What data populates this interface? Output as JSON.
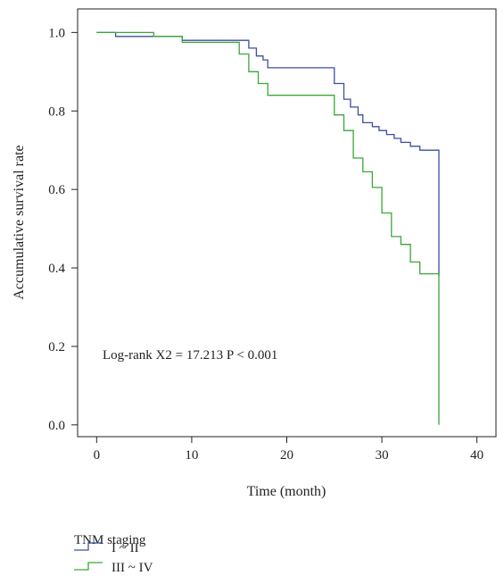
{
  "chart_data": {
    "type": "line",
    "subtype": "kaplan-meier step",
    "xlabel": "Time (month)",
    "ylabel": "Accumulative survival rate",
    "xlim": [
      -2,
      42
    ],
    "ylim": [
      -0.03,
      1.06
    ],
    "xticks": [
      0,
      10,
      20,
      30,
      40
    ],
    "yticks": [
      0.0,
      0.2,
      0.4,
      0.6,
      0.8,
      1.0
    ],
    "xtick_labels": [
      "0",
      "10",
      "20",
      "30",
      "40"
    ],
    "ytick_labels": [
      "0.0",
      "0.2",
      "0.4",
      "0.6",
      "0.8",
      "1.0"
    ],
    "grid": false,
    "annotation": "Log-rank X2 = 17.213 P < 0.001",
    "legend": {
      "title": "TNM staging",
      "placement": "bottom-left"
    },
    "series": [
      {
        "name": "I ~ II",
        "color": "#3b4fa3",
        "x": [
          0,
          2,
          9,
          16,
          16.8,
          17.5,
          18,
          25,
          26,
          26.7,
          27.5,
          28,
          29,
          29.7,
          30.5,
          31.3,
          32,
          33,
          34,
          36,
          36
        ],
        "y": [
          1.0,
          0.99,
          0.98,
          0.96,
          0.94,
          0.93,
          0.91,
          0.87,
          0.83,
          0.81,
          0.79,
          0.77,
          0.76,
          0.75,
          0.74,
          0.73,
          0.72,
          0.71,
          0.7,
          0.7,
          0.38
        ]
      },
      {
        "name": "III ~ IV",
        "color": "#3aa835",
        "x": [
          0,
          6,
          9,
          15,
          16,
          17,
          18,
          25,
          26,
          27,
          28,
          29,
          30,
          31,
          32,
          33,
          34,
          36,
          36
        ],
        "y": [
          1.0,
          0.99,
          0.975,
          0.945,
          0.9,
          0.87,
          0.84,
          0.79,
          0.75,
          0.68,
          0.645,
          0.605,
          0.54,
          0.48,
          0.46,
          0.415,
          0.385,
          0.385,
          0.0
        ]
      }
    ]
  }
}
